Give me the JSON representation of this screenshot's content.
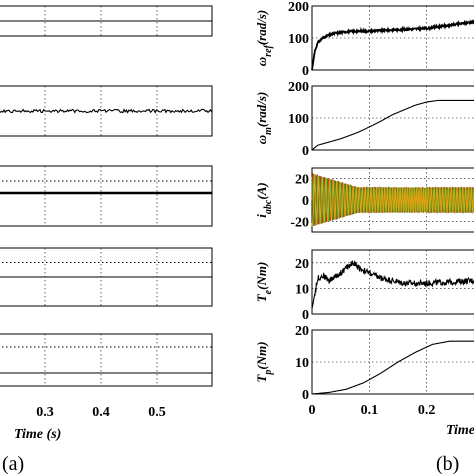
{
  "captions": {
    "left": "(a)",
    "right": "(b)"
  },
  "chart_data": [
    {
      "panel": "a",
      "type": "line",
      "xlabel": "Time (s)",
      "x_ticks": [
        "0.3",
        "0.4",
        "0.5"
      ],
      "xlim": [
        0.2,
        0.6
      ],
      "subplots": [
        {
          "trace": "flat",
          "level": 0.5,
          "ref_level": null
        },
        {
          "trace": "noisy",
          "level": 0.5,
          "ref_level": null
        },
        {
          "trace": "flat",
          "level": 0.55,
          "ref_level": 0.75
        },
        {
          "trace": "flat",
          "level": 0.5,
          "ref_level": 0.75
        },
        {
          "trace": "flat",
          "level": 0.25,
          "ref_level": 0.75
        }
      ]
    },
    {
      "panel": "b",
      "type": "line",
      "xlabel": "Time (s)",
      "x_ticks": [
        "0",
        "0.1",
        "0.2"
      ],
      "xlim": [
        0,
        0.3
      ],
      "subplots": [
        {
          "ylabel": "ω_ref (rad/s)",
          "ylabel_main": "ω",
          "ylabel_sub": "ref",
          "ylabel_unit": "(rad/s)",
          "ylim": [
            0,
            200
          ],
          "y_ticks": [
            "200",
            "100",
            "0"
          ],
          "series": [
            {
              "x": [
                0,
                0.005,
                0.01,
                0.02,
                0.04,
                0.06,
                0.1,
                0.15,
                0.2,
                0.24,
                0.28,
                0.3
              ],
              "y": [
                0,
                60,
                85,
                102,
                115,
                120,
                122,
                126,
                130,
                140,
                150,
                155
              ]
            }
          ]
        },
        {
          "ylabel": "ω_m (rad/s)",
          "ylabel_main": "ω",
          "ylabel_sub": "m",
          "ylabel_unit": "(rad/s)",
          "ylim": [
            0,
            200
          ],
          "y_ticks": [
            "200",
            "100",
            "0"
          ],
          "series": [
            {
              "x": [
                0,
                0.01,
                0.03,
                0.05,
                0.08,
                0.1,
                0.12,
                0.14,
                0.16,
                0.18,
                0.2,
                0.22,
                0.24,
                0.3
              ],
              "y": [
                0,
                15,
                25,
                35,
                55,
                72,
                90,
                110,
                125,
                140,
                150,
                155,
                155,
                155
              ]
            }
          ]
        },
        {
          "ylabel": "i_abc (A)",
          "ylabel_main": "i",
          "ylabel_sub": "abc",
          "ylabel_unit": "(A)",
          "ylim": [
            -30,
            30
          ],
          "y_ticks": [
            "20",
            "0",
            "-20"
          ],
          "series": [
            {
              "name": "a",
              "color": "#d62020",
              "amp_start": 25,
              "amp_end": 12,
              "phase": 0
            },
            {
              "name": "b",
              "color": "#1e9e2c",
              "amp_start": 25,
              "amp_end": 12,
              "phase": 2.094
            },
            {
              "name": "c",
              "color": "#e0a010",
              "amp_start": 25,
              "amp_end": 12,
              "phase": 4.189
            }
          ]
        },
        {
          "ylabel": "T_e (Nm)",
          "ylabel_main": "T",
          "ylabel_sub": "e",
          "ylabel_unit": "(Nm)",
          "ylim": [
            0,
            25
          ],
          "y_ticks": [
            "20",
            "10",
            "0"
          ],
          "series": [
            {
              "x": [
                0,
                0.005,
                0.01,
                0.02,
                0.03,
                0.05,
                0.07,
                0.09,
                0.12,
                0.16,
                0.2,
                0.24,
                0.28,
                0.3
              ],
              "y": [
                2,
                8,
                14,
                15,
                13,
                16,
                20,
                17,
                14,
                12,
                12,
                12.5,
                13,
                13
              ]
            }
          ]
        },
        {
          "ylabel": "T_p (Nm)",
          "ylabel_main": "T",
          "ylabel_sub": "p",
          "ylabel_unit": "(Nm)",
          "ylim": [
            0,
            20
          ],
          "y_ticks": [
            "20",
            "10",
            "0"
          ],
          "series": [
            {
              "x": [
                0,
                0.03,
                0.06,
                0.09,
                0.12,
                0.15,
                0.18,
                0.21,
                0.24,
                0.26,
                0.3
              ],
              "y": [
                0,
                0.5,
                1.5,
                3.5,
                6.5,
                10,
                13,
                15.5,
                16.5,
                16.5,
                16.5
              ]
            }
          ]
        }
      ]
    }
  ]
}
